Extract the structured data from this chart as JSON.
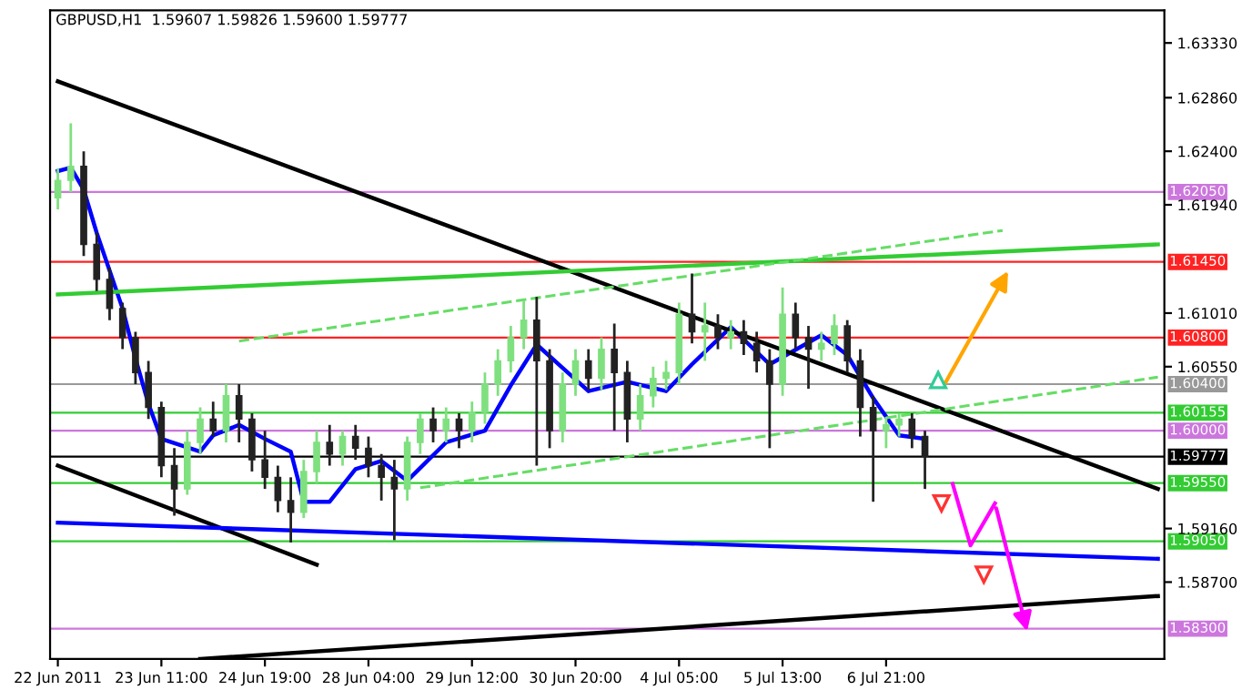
{
  "chart_data": {
    "type": "candlestick",
    "title": "GBPUSD,H1  1.59607 1.59826 1.59600 1.59777",
    "categories": [
      "22 Jun 2011",
      null,
      null,
      null,
      null,
      null,
      null,
      null,
      "23 Jun 11:00",
      null,
      null,
      null,
      null,
      null,
      null,
      null,
      "24 Jun 19:00",
      null,
      null,
      null,
      null,
      null,
      null,
      null,
      "28 Jun 04:00",
      null,
      null,
      null,
      null,
      null,
      null,
      null,
      "29 Jun 12:00",
      null,
      null,
      null,
      null,
      null,
      null,
      null,
      "30 Jun 20:00",
      null,
      null,
      null,
      null,
      null,
      null,
      null,
      "4 Jul 05:00",
      null,
      null,
      null,
      null,
      null,
      null,
      null,
      "5 Jul 13:00",
      null,
      null,
      null,
      null,
      null,
      null,
      null,
      "6 Jul 21:00",
      null,
      null,
      null,
      null,
      null,
      null,
      null,
      null,
      null,
      null,
      null,
      null,
      null,
      null,
      null,
      null,
      null,
      null,
      null,
      null,
      null
    ],
    "ohlc": [
      [
        1.62,
        1.6225,
        1.619,
        1.6215
      ],
      [
        1.6215,
        1.6264,
        1.6205,
        1.6227
      ],
      [
        1.6227,
        1.624,
        1.615,
        1.616
      ],
      [
        1.616,
        1.617,
        1.612,
        1.613
      ],
      [
        1.613,
        1.614,
        1.6095,
        1.6105
      ],
      [
        1.6105,
        1.611,
        1.607,
        1.608
      ],
      [
        1.608,
        1.6085,
        1.604,
        1.605
      ],
      [
        1.605,
        1.606,
        1.601,
        1.602
      ],
      [
        1.602,
        1.6025,
        1.596,
        1.597
      ],
      [
        1.597,
        1.5985,
        1.5927,
        1.595
      ],
      [
        1.595,
        1.6,
        1.5945,
        1.599
      ],
      [
        1.599,
        1.602,
        1.598,
        1.601
      ],
      [
        1.601,
        1.6025,
        1.5995,
        1.6
      ],
      [
        1.6,
        1.604,
        1.599,
        1.603
      ],
      [
        1.603,
        1.604,
        1.599,
        1.601
      ],
      [
        1.601,
        1.6015,
        1.5965,
        1.5975
      ],
      [
        1.5975,
        1.6,
        1.595,
        1.596
      ],
      [
        1.596,
        1.597,
        1.593,
        1.594
      ],
      [
        1.594,
        1.596,
        1.5904,
        1.593
      ],
      [
        1.593,
        1.5975,
        1.5925,
        1.5965
      ],
      [
        1.5965,
        1.6,
        1.5955,
        1.599
      ],
      [
        1.599,
        1.6005,
        1.597,
        1.598
      ],
      [
        1.598,
        1.6,
        1.597,
        1.5995
      ],
      [
        1.5995,
        1.6005,
        1.5975,
        1.5985
      ],
      [
        1.5985,
        1.5995,
        1.596,
        1.597
      ],
      [
        1.597,
        1.598,
        1.594,
        1.596
      ],
      [
        1.596,
        1.5975,
        1.5906,
        1.595
      ],
      [
        1.595,
        1.5995,
        1.594,
        1.599
      ],
      [
        1.599,
        1.6015,
        1.598,
        1.601
      ],
      [
        1.601,
        1.602,
        1.599,
        1.6
      ],
      [
        1.6,
        1.602,
        1.599,
        1.601
      ],
      [
        1.601,
        1.6015,
        1.5985,
        1.6
      ],
      [
        1.6,
        1.6025,
        1.599,
        1.6016
      ],
      [
        1.6016,
        1.605,
        1.6006,
        1.604
      ],
      [
        1.604,
        1.607,
        1.603,
        1.606
      ],
      [
        1.606,
        1.609,
        1.605,
        1.608
      ],
      [
        1.608,
        1.6112,
        1.607,
        1.6095
      ],
      [
        1.6095,
        1.6115,
        1.597,
        1.606
      ],
      [
        1.606,
        1.607,
        1.5985,
        1.6
      ],
      [
        1.6,
        1.605,
        1.599,
        1.604
      ],
      [
        1.604,
        1.607,
        1.603,
        1.606
      ],
      [
        1.606,
        1.607,
        1.6035,
        1.6045
      ],
      [
        1.6045,
        1.608,
        1.6035,
        1.607
      ],
      [
        1.607,
        1.6092,
        1.6,
        1.605
      ],
      [
        1.605,
        1.606,
        1.599,
        1.601
      ],
      [
        1.601,
        1.604,
        1.6,
        1.603
      ],
      [
        1.603,
        1.6055,
        1.602,
        1.6045
      ],
      [
        1.6045,
        1.606,
        1.6035,
        1.605
      ],
      [
        1.605,
        1.611,
        1.604,
        1.61
      ],
      [
        1.61,
        1.6135,
        1.6075,
        1.6085
      ],
      [
        1.6085,
        1.611,
        1.606,
        1.609
      ],
      [
        1.609,
        1.61,
        1.607,
        1.608
      ],
      [
        1.608,
        1.6095,
        1.607,
        1.6085
      ],
      [
        1.6085,
        1.6095,
        1.6065,
        1.6075
      ],
      [
        1.6075,
        1.6085,
        1.605,
        1.606
      ],
      [
        1.606,
        1.607,
        1.5985,
        1.604
      ],
      [
        1.604,
        1.6123,
        1.603,
        1.61
      ],
      [
        1.61,
        1.611,
        1.607,
        1.608
      ],
      [
        1.608,
        1.609,
        1.6036,
        1.607
      ],
      [
        1.607,
        1.6085,
        1.606,
        1.6075
      ],
      [
        1.6075,
        1.61,
        1.6065,
        1.609
      ],
      [
        1.609,
        1.6095,
        1.605,
        1.606
      ],
      [
        1.606,
        1.607,
        1.5995,
        1.602
      ],
      [
        1.602,
        1.603,
        1.5939,
        1.6
      ],
      [
        1.6,
        1.6012,
        1.5985,
        1.6005
      ],
      [
        1.6005,
        1.6015,
        1.5995,
        1.601
      ],
      [
        1.601,
        1.6015,
        1.5985,
        1.5995
      ],
      [
        1.5995,
        1.6,
        1.595,
        1.5978
      ],
      null,
      null,
      null,
      null,
      null,
      null,
      null,
      null,
      null,
      null,
      null,
      null,
      null,
      null,
      null,
      null,
      null,
      null
    ],
    "series": [
      {
        "type": "line",
        "color": "#0000ff",
        "values": [
          1.6223,
          1.6226,
          1.6207,
          1.617,
          null,
          1.6105,
          1.6062,
          1.6023,
          1.5993,
          null,
          null,
          1.5982,
          1.5996,
          null,
          1.6005,
          null,
          1.5993,
          null,
          1.5982,
          1.5939,
          null,
          1.5939,
          null,
          1.5967,
          null,
          1.5974,
          null,
          1.5957,
          null,
          null,
          1.599,
          null,
          null,
          1.6,
          null,
          1.6039,
          null,
          1.6074,
          null,
          1.6054,
          null,
          1.6034,
          null,
          null,
          1.6042,
          null,
          null,
          1.6034,
          null,
          1.6057,
          null,
          null,
          1.6089,
          null,
          null,
          1.6057,
          null,
          null,
          null,
          1.6082,
          null,
          1.6065,
          null,
          1.6028,
          null,
          1.5996,
          null,
          1.5993,
          null,
          null,
          null,
          null,
          null,
          null,
          null,
          null,
          null,
          null,
          null,
          null,
          null,
          null,
          null,
          null,
          null,
          null
        ]
      },
      {
        "type": "line",
        "color": "#000000",
        "values": [
          1.63,
          null,
          null,
          null,
          null,
          null,
          null,
          null,
          null,
          null,
          null,
          null,
          null,
          null,
          null,
          null,
          null,
          null,
          null,
          null,
          null,
          null,
          null,
          null,
          null,
          null,
          null,
          null,
          null,
          null,
          null,
          null,
          null,
          null,
          null,
          null,
          null,
          null,
          null,
          null,
          null,
          null,
          null,
          null,
          null,
          null,
          null,
          null,
          null,
          null,
          null,
          null,
          null,
          null,
          null,
          null,
          null,
          null,
          null,
          null,
          null,
          null,
          null,
          null,
          null,
          null,
          null,
          null,
          null,
          null,
          null,
          null,
          null,
          null,
          null,
          null,
          null,
          null,
          null,
          null,
          null,
          null,
          null,
          null,
          null,
          1.595
        ]
      },
      {
        "type": "line",
        "color": "#000000",
        "values": [
          1.597,
          null,
          null,
          null,
          null,
          null,
          null,
          null,
          null,
          null,
          null,
          null,
          null,
          null,
          null,
          null,
          null,
          null,
          null,
          null,
          1.5885,
          null,
          null,
          null,
          null,
          null,
          null,
          null,
          null,
          null,
          null,
          null,
          null,
          null,
          null,
          null,
          null,
          null,
          null,
          null,
          null,
          null,
          null,
          null,
          null,
          null,
          null,
          null,
          null,
          null,
          null,
          null,
          null,
          null,
          null,
          null,
          null,
          null,
          null,
          null,
          null,
          null,
          null,
          null,
          null,
          null,
          null,
          null,
          null,
          null,
          null,
          null,
          null,
          null,
          null,
          null,
          null,
          null,
          null,
          null,
          null,
          null,
          null,
          null,
          null,
          null
        ]
      },
      {
        "type": "line",
        "color": "#0000ff",
        "values": [
          1.5921,
          null,
          null,
          null,
          null,
          null,
          null,
          null,
          null,
          null,
          null,
          null,
          null,
          null,
          null,
          null,
          null,
          null,
          null,
          null,
          null,
          null,
          null,
          null,
          null,
          null,
          null,
          null,
          null,
          null,
          null,
          null,
          null,
          null,
          null,
          null,
          null,
          null,
          null,
          null,
          null,
          null,
          null,
          null,
          null,
          null,
          null,
          null,
          null,
          null,
          null,
          null,
          null,
          null,
          null,
          null,
          null,
          null,
          null,
          null,
          null,
          null,
          null,
          null,
          null,
          null,
          null,
          null,
          null,
          null,
          null,
          null,
          null,
          null,
          null,
          null,
          null,
          null,
          null,
          null,
          null,
          null,
          null,
          null,
          null,
          1.589
        ]
      },
      {
        "type": "line",
        "color": "#000000",
        "values": [
          null,
          null,
          null,
          null,
          null,
          null,
          null,
          null,
          null,
          null,
          null,
          1.5804,
          null,
          null,
          null,
          null,
          null,
          null,
          null,
          null,
          null,
          null,
          null,
          null,
          null,
          null,
          null,
          null,
          null,
          null,
          null,
          null,
          null,
          null,
          null,
          null,
          null,
          null,
          null,
          null,
          null,
          null,
          null,
          null,
          null,
          null,
          null,
          null,
          null,
          null,
          null,
          null,
          null,
          null,
          null,
          null,
          null,
          null,
          null,
          null,
          null,
          null,
          null,
          null,
          null,
          null,
          null,
          null,
          null,
          null,
          null,
          null,
          null,
          null,
          null,
          null,
          null,
          null,
          null,
          null,
          null,
          null,
          null,
          null,
          null,
          1.5858
        ]
      },
      {
        "type": "line",
        "color": "#33cc33",
        "values": [
          1.6117,
          null,
          null,
          null,
          null,
          null,
          null,
          null,
          null,
          null,
          null,
          null,
          null,
          null,
          null,
          null,
          null,
          null,
          null,
          null,
          null,
          null,
          null,
          null,
          null,
          null,
          null,
          null,
          null,
          null,
          null,
          null,
          null,
          null,
          null,
          null,
          null,
          null,
          null,
          null,
          null,
          null,
          null,
          null,
          null,
          null,
          null,
          null,
          null,
          null,
          null,
          null,
          null,
          null,
          null,
          null,
          null,
          null,
          null,
          null,
          null,
          null,
          null,
          null,
          null,
          null,
          null,
          null,
          null,
          null,
          null,
          null,
          null,
          null,
          null,
          null,
          null,
          null,
          null,
          null,
          null,
          null,
          null,
          null,
          null,
          1.616
        ]
      },
      {
        "type": "line",
        "color": "#66dd66",
        "line_style": "dashed",
        "values": [
          null,
          null,
          null,
          null,
          null,
          null,
          null,
          null,
          null,
          null,
          null,
          null,
          null,
          null,
          1.6077,
          null,
          null,
          null,
          null,
          null,
          null,
          null,
          null,
          null,
          null,
          null,
          null,
          null,
          null,
          null,
          null,
          null,
          null,
          null,
          null,
          null,
          null,
          null,
          null,
          null,
          null,
          null,
          null,
          null,
          null,
          null,
          null,
          null,
          null,
          null,
          null,
          null,
          null,
          null,
          null,
          null,
          null,
          null,
          null,
          null,
          null,
          null,
          null,
          null,
          null,
          null,
          null,
          null,
          null,
          null,
          null,
          null,
          null,
          1.6172,
          null,
          null,
          null,
          null,
          null,
          null,
          null,
          null,
          null,
          null,
          null,
          null
        ]
      },
      {
        "type": "line",
        "color": "#66dd66",
        "line_style": "dashed",
        "values": [
          null,
          null,
          null,
          null,
          null,
          null,
          null,
          null,
          null,
          null,
          null,
          null,
          null,
          null,
          null,
          null,
          null,
          null,
          null,
          null,
          null,
          null,
          null,
          null,
          null,
          null,
          null,
          null,
          1.5951,
          null,
          null,
          null,
          null,
          null,
          null,
          null,
          null,
          null,
          null,
          null,
          null,
          null,
          null,
          null,
          null,
          null,
          null,
          null,
          null,
          null,
          null,
          null,
          null,
          null,
          null,
          null,
          null,
          null,
          null,
          null,
          null,
          null,
          null,
          null,
          null,
          null,
          null,
          null,
          null,
          null,
          null,
          null,
          null,
          null,
          null,
          null,
          null,
          null,
          null,
          null,
          null,
          null,
          null,
          null,
          null,
          1.6046
        ]
      }
    ],
    "ref_lines": [
      {
        "axis": "y",
        "value": 1.6205,
        "label": "1.62050",
        "color": "#cc77dd"
      },
      {
        "axis": "y",
        "value": 1.6145,
        "label": "1.61450",
        "color": "#ff2222"
      },
      {
        "axis": "y",
        "value": 1.608,
        "label": "1.60800",
        "color": "#ff2222"
      },
      {
        "axis": "y",
        "value": 1.604,
        "label": "1.60400",
        "color": "#999999"
      },
      {
        "axis": "y",
        "value": 1.60155,
        "label": "1.60155",
        "color": "#33cc33"
      },
      {
        "axis": "y",
        "value": 1.6,
        "label": "1.60000",
        "color": "#cc77dd"
      },
      {
        "axis": "y",
        "value": 1.59777,
        "label": "1.59777",
        "color": "#000000"
      },
      {
        "axis": "y",
        "value": 1.5955,
        "label": "1.59550",
        "color": "#33cc33"
      },
      {
        "axis": "y",
        "value": 1.5905,
        "label": "1.59050",
        "color": "#33cc33"
      },
      {
        "axis": "y",
        "value": 1.583,
        "label": "1.58300",
        "color": "#cc77dd"
      }
    ],
    "ylim": [
      1.5804,
      1.6361
    ],
    "yticks": [
      {
        "value": 1.587,
        "label": "1.58700"
      },
      {
        "value": 1.5916,
        "label": "1.59160"
      },
      {
        "value": 1.6055,
        "label": "1.60550"
      },
      {
        "value": 1.6101,
        "label": "1.61010"
      },
      {
        "value": 1.6194,
        "label": "1.61940"
      },
      {
        "value": 1.624,
        "label": "1.62400"
      },
      {
        "value": 1.6286,
        "label": "1.62860"
      },
      {
        "value": 1.6333,
        "label": "1.63330"
      }
    ],
    "grid": false
  }
}
